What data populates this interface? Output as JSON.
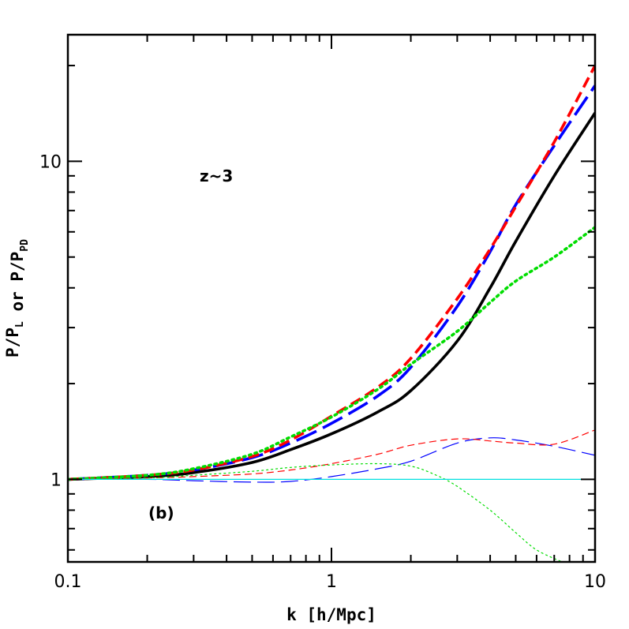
{
  "chart_data": {
    "type": "line",
    "xlabel": "k [h/Mpc]",
    "ylabel": {
      "parts": [
        {
          "text": "P/P",
          "sub": false
        },
        {
          "text": "L",
          "sub": true
        },
        {
          "text": " or P/P",
          "sub": false
        },
        {
          "text": "PD",
          "sub": true
        }
      ]
    },
    "xscale": "log",
    "yscale": "log",
    "xlim": [
      0.1,
      10
    ],
    "ylim": [
      0.55,
      25
    ],
    "x_tick_labels": [
      {
        "value": 0.1,
        "label": "0.1"
      },
      {
        "value": 1,
        "label": "1"
      },
      {
        "value": 10,
        "label": "10"
      }
    ],
    "y_tick_labels": [
      {
        "value": 1,
        "label": "1"
      },
      {
        "value": 10,
        "label": "10"
      }
    ],
    "annotations": [
      {
        "text": "z~3",
        "position": "upper-left"
      },
      {
        "text": "(b)",
        "position": "lower-left"
      }
    ],
    "grid": false,
    "series": [
      {
        "color": "#000000",
        "style": "solid",
        "weight": "thick",
        "x": [
          0.1,
          0.2,
          0.3,
          0.5,
          0.7,
          1,
          1.5,
          2,
          3,
          4,
          5,
          7,
          10
        ],
        "y": [
          1.0,
          1.02,
          1.05,
          1.13,
          1.24,
          1.39,
          1.63,
          1.9,
          2.72,
          4.0,
          5.6,
          9.0,
          14.2
        ]
      },
      {
        "color": "#0000ff",
        "style": "long-dash",
        "weight": "thick",
        "x": [
          0.1,
          0.2,
          0.3,
          0.5,
          0.7,
          1,
          1.5,
          2,
          3,
          4,
          5,
          7,
          10
        ],
        "y": [
          1.0,
          1.03,
          1.07,
          1.17,
          1.3,
          1.5,
          1.83,
          2.25,
          3.5,
          5.2,
          7.3,
          11.2,
          17.3
        ]
      },
      {
        "color": "#ff0000",
        "style": "dash",
        "weight": "thick",
        "x": [
          0.1,
          0.2,
          0.3,
          0.5,
          0.7,
          1,
          1.5,
          2,
          3,
          4,
          5,
          7,
          10
        ],
        "y": [
          1.0,
          1.03,
          1.07,
          1.18,
          1.33,
          1.58,
          1.95,
          2.4,
          3.7,
          5.3,
          7.2,
          11.5,
          20.0
        ]
      },
      {
        "color": "#00dd00",
        "style": "dotted",
        "weight": "thick",
        "x": [
          0.1,
          0.2,
          0.3,
          0.5,
          0.7,
          1,
          1.5,
          2,
          3,
          4,
          5,
          7,
          10
        ],
        "y": [
          1.0,
          1.03,
          1.08,
          1.2,
          1.36,
          1.57,
          1.92,
          2.3,
          2.92,
          3.6,
          4.2,
          5.0,
          6.2
        ]
      },
      {
        "color": "#0000ff",
        "style": "long-dash",
        "weight": "thin",
        "x": [
          0.1,
          0.2,
          0.3,
          0.5,
          0.7,
          1,
          1.5,
          2,
          3,
          4,
          5,
          7,
          10
        ],
        "y": [
          1.0,
          1.0,
          0.99,
          0.98,
          0.985,
          1.02,
          1.08,
          1.14,
          1.3,
          1.35,
          1.33,
          1.27,
          1.19
        ]
      },
      {
        "color": "#ff0000",
        "style": "dash",
        "weight": "thin",
        "x": [
          0.1,
          0.2,
          0.3,
          0.5,
          0.7,
          1,
          1.5,
          2,
          3,
          4,
          5,
          7,
          10
        ],
        "y": [
          1.0,
          1.01,
          1.02,
          1.04,
          1.07,
          1.12,
          1.2,
          1.28,
          1.34,
          1.32,
          1.3,
          1.29,
          1.43
        ]
      },
      {
        "color": "#00dd00",
        "style": "dotted",
        "weight": "thin",
        "x": [
          0.1,
          0.2,
          0.3,
          0.5,
          0.7,
          1,
          1.5,
          2,
          2.5,
          3,
          4,
          5,
          6,
          7.5
        ],
        "y": [
          1.0,
          1.01,
          1.03,
          1.06,
          1.09,
          1.11,
          1.12,
          1.1,
          1.03,
          0.95,
          0.8,
          0.68,
          0.6,
          0.55
        ]
      },
      {
        "color": "#00e0e0",
        "style": "solid",
        "weight": "thin",
        "x": [
          0.1,
          10
        ],
        "y": [
          1.0,
          1.0
        ]
      }
    ]
  }
}
